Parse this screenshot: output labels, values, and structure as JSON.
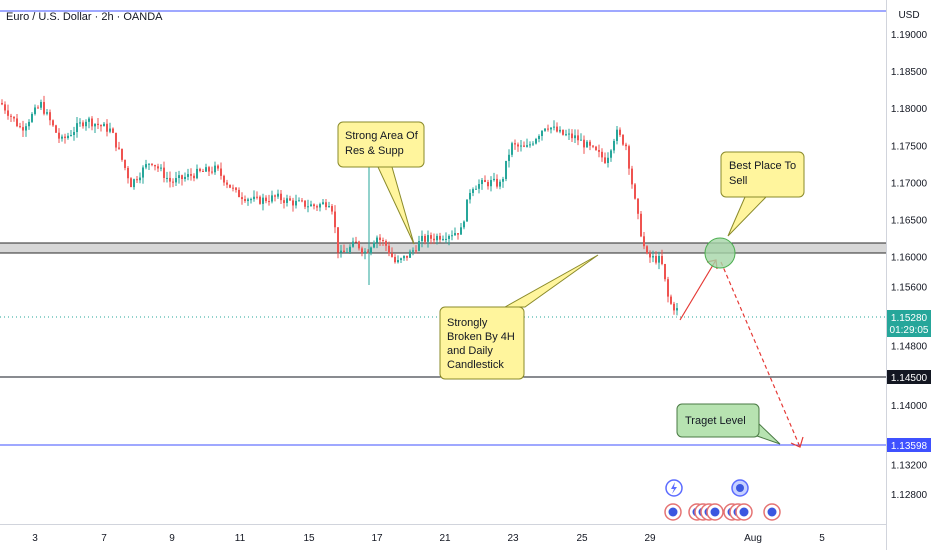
{
  "header": {
    "symbol_title": "Euro / U.S. Dollar · 2h · OANDA",
    "currency": "USD"
  },
  "price_axis": {
    "ticks": [
      "1.19000",
      "1.18500",
      "1.18000",
      "1.17500",
      "1.17000",
      "1.16500",
      "1.16000",
      "1.15600",
      "1.14800",
      "1.14000",
      "1.13200",
      "1.12800"
    ],
    "current_price": "1.15280",
    "countdown": "01:29:05",
    "level_1": "1.14500",
    "level_2": "1.13598"
  },
  "time_axis": {
    "labels": [
      "3",
      "7",
      "9",
      "11",
      "15",
      "17",
      "21",
      "23",
      "25",
      "29",
      "Aug",
      "5"
    ]
  },
  "annotations": {
    "strong_area": [
      "Strong Area Of",
      "Res & Supp"
    ],
    "best_place": [
      "Best Place To",
      "Sell"
    ],
    "strongly_broken": [
      "Strongly",
      "Broken By 4H",
      "and Daily",
      "Candlestick"
    ],
    "target": "Traget Level"
  },
  "colors": {
    "up": "#26a69a",
    "down": "#ef5350",
    "level_line": "#3f51ff",
    "note_fill": "#fff59d",
    "note_stroke": "#8a8a2a",
    "target_fill": "#b7e3b1",
    "zone_fill": "#c9c9c9",
    "arrow": "#e53935",
    "circle_fill": "#a5d6a7"
  },
  "chart_data": {
    "type": "candlestick",
    "instrument": "EUR/USD",
    "timeframe": "2h",
    "y_unit": "USD",
    "ylim": [
      1.1245,
      1.1935
    ],
    "grid": false,
    "series": [
      {
        "x": "Jul 2",
        "y": 1.1795
      },
      {
        "x": "Jul 3",
        "y": 1.1772
      },
      {
        "x": "Jul 4",
        "y": 1.18
      },
      {
        "x": "Jul 7",
        "y": 1.173
      },
      {
        "x": "Jul 8",
        "y": 1.1772
      },
      {
        "x": "Jul 9",
        "y": 1.1705
      },
      {
        "x": "Jul 10",
        "y": 1.17
      },
      {
        "x": "Jul 11",
        "y": 1.1682
      },
      {
        "x": "Jul 14",
        "y": 1.1673
      },
      {
        "x": "Jul 15",
        "y": 1.1605
      },
      {
        "x": "Jul 16",
        "y": 1.1618
      },
      {
        "x": "Jul 17",
        "y": 1.1595
      },
      {
        "x": "Jul 18",
        "y": 1.162
      },
      {
        "x": "Jul 21",
        "y": 1.1628
      },
      {
        "x": "Jul 22",
        "y": 1.17
      },
      {
        "x": "Jul 23",
        "y": 1.1735
      },
      {
        "x": "Jul 24",
        "y": 1.176
      },
      {
        "x": "Jul 25",
        "y": 1.1738
      },
      {
        "x": "Jul 28",
        "y": 1.16
      },
      {
        "x": "Jul 29",
        "y": 1.1528
      }
    ],
    "zone": {
      "label": "Strong Area Of Res & Supp",
      "from": 1.1615,
      "to": 1.1627
    },
    "levels": [
      {
        "value": 1.145
      },
      {
        "value": 1.13598
      }
    ],
    "projection": [
      {
        "x": "Jul 29",
        "y": 1.1528
      },
      {
        "x": "Jul 31",
        "y": 1.1615
      },
      {
        "x": "Aug 4",
        "y": 1.1358
      }
    ]
  }
}
